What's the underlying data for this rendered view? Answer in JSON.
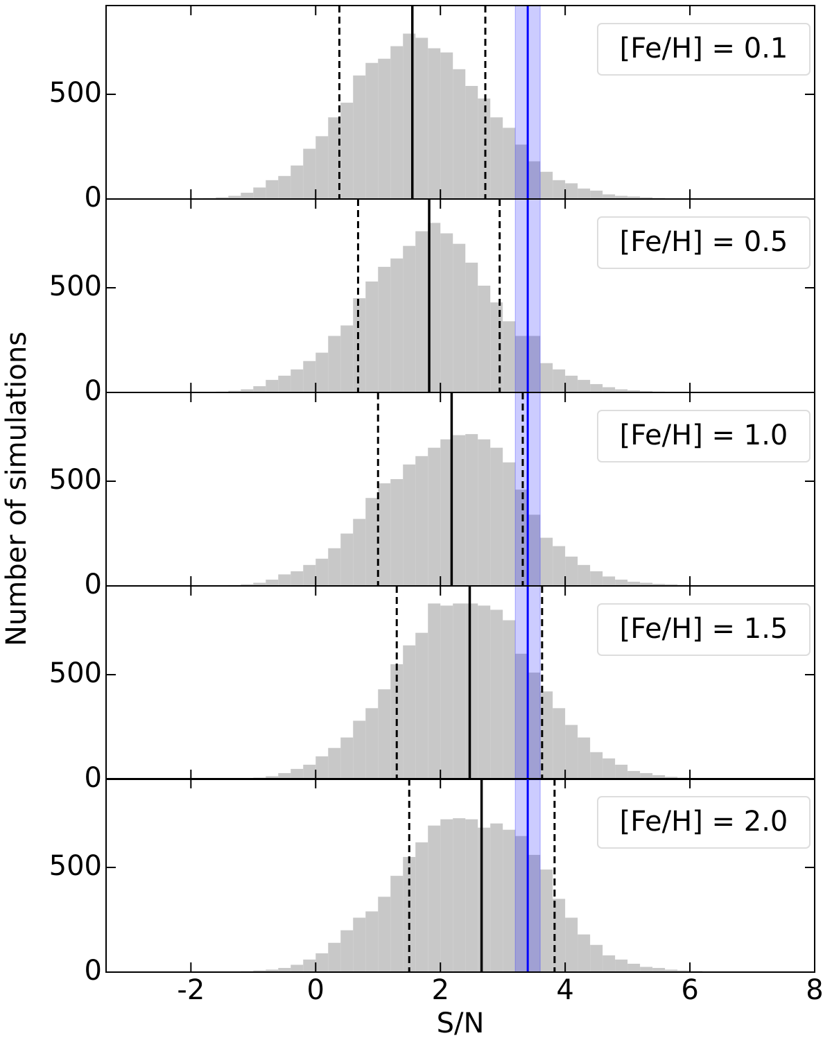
{
  "chart_data": [
    {
      "type": "histogram",
      "label": "[Fe/H] = 0.1",
      "color": "#c8c8c8",
      "bins": [
        -2.0,
        -1.8,
        -1.6,
        -1.4,
        -1.2,
        -1.0,
        -0.8,
        -0.6,
        -0.4,
        -0.2,
        0.0,
        0.2,
        0.4,
        0.6,
        0.8,
        1.0,
        1.2,
        1.4,
        1.6,
        1.8,
        2.0,
        2.2,
        2.4,
        2.6,
        2.8,
        3.0,
        3.2,
        3.4,
        3.6,
        3.8,
        4.0,
        4.2,
        4.4,
        4.6,
        4.8,
        5.0,
        5.2,
        5.4,
        5.6,
        5.8,
        6.0,
        6.2,
        6.4,
        6.6,
        6.8,
        7.0
      ],
      "values": [
        2,
        4,
        8,
        15,
        30,
        55,
        90,
        110,
        160,
        240,
        300,
        390,
        460,
        590,
        650,
        670,
        730,
        790,
        770,
        720,
        700,
        620,
        540,
        480,
        390,
        340,
        260,
        180,
        130,
        90,
        75,
        50,
        40,
        22,
        15,
        12,
        8,
        5,
        3,
        2,
        1,
        1,
        0,
        0,
        0
      ],
      "median": 1.55,
      "p16": 0.38,
      "p84": 2.72,
      "observed": 3.4,
      "observed_band": [
        3.2,
        3.6
      ],
      "observed_color": "#0000ff",
      "xlim": [
        -3.36,
        8
      ],
      "xticks": [
        -2,
        0,
        2,
        4,
        6,
        8
      ],
      "ylim": [
        0,
        924
      ],
      "yticks": [
        0,
        500
      ]
    },
    {
      "type": "histogram",
      "label": "[Fe/H] = 0.5",
      "color": "#c8c8c8",
      "bins": [
        -2.0,
        -1.8,
        -1.6,
        -1.4,
        -1.2,
        -1.0,
        -0.8,
        -0.6,
        -0.4,
        -0.2,
        0.0,
        0.2,
        0.4,
        0.6,
        0.8,
        1.0,
        1.2,
        1.4,
        1.6,
        1.8,
        2.0,
        2.2,
        2.4,
        2.6,
        2.8,
        3.0,
        3.2,
        3.4,
        3.6,
        3.8,
        4.0,
        4.2,
        4.4,
        4.6,
        4.8,
        5.0,
        5.2,
        5.4,
        5.6,
        5.8,
        6.0,
        6.2,
        6.4,
        6.6,
        6.8,
        7.0
      ],
      "values": [
        1,
        2,
        4,
        8,
        15,
        30,
        60,
        80,
        110,
        150,
        190,
        270,
        320,
        450,
        530,
        600,
        640,
        700,
        770,
        810,
        760,
        710,
        620,
        510,
        430,
        340,
        270,
        270,
        140,
        110,
        80,
        60,
        40,
        25,
        15,
        10,
        6,
        4,
        2,
        1,
        1,
        0,
        0,
        0,
        0
      ],
      "median": 1.82,
      "p16": 0.68,
      "p84": 2.95,
      "observed": 3.4,
      "observed_band": [
        3.2,
        3.6
      ],
      "observed_color": "#0000ff",
      "xlim": [
        -3.36,
        8
      ],
      "xticks": [
        -2,
        0,
        2,
        4,
        6,
        8
      ],
      "ylim": [
        0,
        924
      ],
      "yticks": [
        0,
        500
      ]
    },
    {
      "type": "histogram",
      "label": "[Fe/H] = 1.0",
      "color": "#c8c8c8",
      "ylabel": "Number of simulations",
      "bins": [
        -2.0,
        -1.8,
        -1.6,
        -1.4,
        -1.2,
        -1.0,
        -0.8,
        -0.6,
        -0.4,
        -0.2,
        0.0,
        0.2,
        0.4,
        0.6,
        0.8,
        1.0,
        1.2,
        1.4,
        1.6,
        1.8,
        2.0,
        2.2,
        2.4,
        2.6,
        2.8,
        3.0,
        3.2,
        3.4,
        3.6,
        3.8,
        4.0,
        4.2,
        4.4,
        4.6,
        4.8,
        5.0,
        5.2,
        5.4,
        5.6,
        5.8,
        6.0,
        6.2,
        6.4,
        6.6,
        6.8,
        7.0
      ],
      "values": [
        0,
        1,
        2,
        4,
        8,
        15,
        30,
        55,
        70,
        100,
        130,
        180,
        250,
        320,
        420,
        490,
        510,
        580,
        620,
        660,
        700,
        720,
        725,
        700,
        660,
        590,
        460,
        340,
        230,
        190,
        140,
        100,
        70,
        45,
        30,
        20,
        15,
        10,
        8,
        5,
        3,
        2,
        1,
        0,
        0
      ],
      "median": 2.18,
      "p16": 1.0,
      "p84": 3.32,
      "observed": 3.4,
      "observed_band": [
        3.2,
        3.6
      ],
      "observed_color": "#0000ff",
      "xlim": [
        -3.36,
        8
      ],
      "xticks": [
        -2,
        0,
        2,
        4,
        6,
        8
      ],
      "ylim": [
        0,
        924
      ],
      "yticks": [
        0,
        500
      ]
    },
    {
      "type": "histogram",
      "label": "[Fe/H] = 1.5",
      "color": "#c8c8c8",
      "bins": [
        -2.0,
        -1.8,
        -1.6,
        -1.4,
        -1.2,
        -1.0,
        -0.8,
        -0.6,
        -0.4,
        -0.2,
        0.0,
        0.2,
        0.4,
        0.6,
        0.8,
        1.0,
        1.2,
        1.4,
        1.6,
        1.8,
        2.0,
        2.2,
        2.4,
        2.6,
        2.8,
        3.0,
        3.2,
        3.4,
        3.6,
        3.8,
        4.0,
        4.2,
        4.4,
        4.6,
        4.8,
        5.0,
        5.2,
        5.4,
        5.6,
        5.8,
        6.0,
        6.2,
        6.4,
        6.6,
        6.8,
        7.0
      ],
      "values": [
        0,
        0,
        1,
        2,
        4,
        8,
        15,
        30,
        50,
        70,
        110,
        150,
        200,
        280,
        340,
        430,
        550,
        640,
        700,
        840,
        830,
        840,
        840,
        830,
        810,
        760,
        600,
        510,
        420,
        340,
        260,
        200,
        130,
        100,
        70,
        40,
        30,
        20,
        12,
        8,
        5,
        3,
        2,
        1,
        0
      ],
      "median": 2.47,
      "p16": 1.3,
      "p84": 3.63,
      "observed": 3.4,
      "observed_band": [
        3.2,
        3.6
      ],
      "observed_color": "#0000ff",
      "xlim": [
        -3.36,
        8
      ],
      "xticks": [
        -2,
        0,
        2,
        4,
        6,
        8
      ],
      "ylim": [
        0,
        924
      ],
      "yticks": [
        0,
        500
      ]
    },
    {
      "type": "histogram",
      "label": "[Fe/H] = 2.0",
      "color": "#c8c8c8",
      "xlabel": "S/N",
      "bins": [
        -2.0,
        -1.8,
        -1.6,
        -1.4,
        -1.2,
        -1.0,
        -0.8,
        -0.6,
        -0.4,
        -0.2,
        0.0,
        0.2,
        0.4,
        0.6,
        0.8,
        1.0,
        1.2,
        1.4,
        1.6,
        1.8,
        2.0,
        2.2,
        2.4,
        2.6,
        2.8,
        3.0,
        3.2,
        3.4,
        3.6,
        3.8,
        4.0,
        4.2,
        4.4,
        4.6,
        4.8,
        5.0,
        5.2,
        5.4,
        5.6,
        5.8,
        6.0,
        6.2,
        6.4,
        6.6,
        6.8,
        7.0
      ],
      "values": [
        0,
        0,
        1,
        2,
        4,
        8,
        12,
        20,
        35,
        60,
        90,
        140,
        200,
        260,
        290,
        360,
        460,
        550,
        620,
        700,
        730,
        735,
        730,
        690,
        710,
        680,
        650,
        560,
        490,
        350,
        260,
        180,
        130,
        80,
        60,
        40,
        25,
        20,
        12,
        8,
        5,
        3,
        2,
        1,
        0
      ],
      "median": 2.66,
      "p16": 1.5,
      "p84": 3.83,
      "observed": 3.4,
      "observed_band": [
        3.2,
        3.6
      ],
      "observed_color": "#0000ff",
      "xlim": [
        -3.36,
        8
      ],
      "xticks": [
        -2,
        0,
        2,
        4,
        6,
        8
      ],
      "ylim": [
        0,
        924
      ],
      "yticks": [
        0,
        500
      ]
    }
  ]
}
